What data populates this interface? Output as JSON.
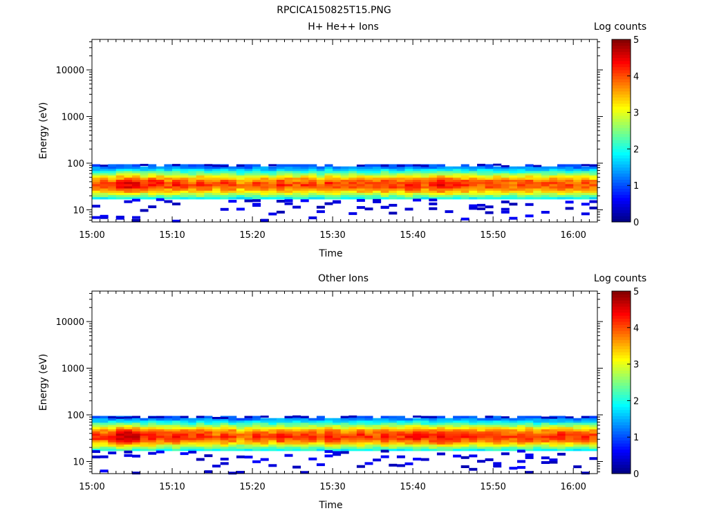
{
  "figure_title": "RPCICA150825T15.PNG",
  "chart_data": [
    {
      "type": "heatmap",
      "title": "H+ He++ Ions",
      "xlabel": "Time",
      "ylabel": "Energy (eV)",
      "y_scale": "log",
      "ylim": [
        5.5,
        45000
      ],
      "xlim": [
        "15:00",
        "16:03"
      ],
      "x_ticks": [
        "15:00",
        "15:10",
        "15:20",
        "15:30",
        "15:40",
        "15:50",
        "16:00"
      ],
      "y_ticks": [
        10,
        100,
        1000,
        10000
      ],
      "y_tick_labels": [
        "10",
        "100",
        "1000",
        "10000"
      ],
      "colorbar": {
        "label": "Log counts",
        "range": [
          0,
          5
        ],
        "ticks": [
          "0",
          "1",
          "2",
          "3",
          "4",
          "5"
        ],
        "colormap": "jet"
      },
      "energy_band": {
        "min_eV": 20,
        "max_eV": 95,
        "peak_eV": 35,
        "peak_log_counts": 4.2
      },
      "time_start_minutes": 0,
      "time_step_minutes": 1,
      "peak_log_counts_by_minute": [
        4.0,
        4.1,
        4.0,
        4.3,
        4.5,
        4.4,
        4.1,
        4.3,
        4.2,
        4.0,
        4.2,
        4.1,
        3.9,
        4.2,
        4.0,
        3.8,
        4.1,
        4.0,
        3.7,
        3.8,
        4.1,
        4.0,
        3.8,
        4.2,
        4.0,
        3.9,
        4.1,
        4.0,
        3.8,
        4.2,
        4.1,
        3.9,
        4.0,
        4.1,
        4.0,
        3.9,
        4.2,
        4.1,
        4.0,
        4.3,
        4.2,
        4.0,
        4.1,
        4.4,
        4.3,
        4.2,
        4.1,
        4.0,
        3.9,
        4.0,
        4.1,
        4.0,
        3.9,
        4.0,
        4.1,
        3.9,
        4.0,
        4.0,
        4.1,
        4.0,
        3.9,
        4.0,
        3.9
      ]
    },
    {
      "type": "heatmap",
      "title": "Other Ions",
      "xlabel": "Time",
      "ylabel": "Energy (eV)",
      "y_scale": "log",
      "ylim": [
        5.5,
        45000
      ],
      "xlim": [
        "15:00",
        "16:03"
      ],
      "x_ticks": [
        "15:00",
        "15:10",
        "15:20",
        "15:30",
        "15:40",
        "15:50",
        "16:00"
      ],
      "y_ticks": [
        10,
        100,
        1000,
        10000
      ],
      "y_tick_labels": [
        "10",
        "100",
        "1000",
        "10000"
      ],
      "colorbar": {
        "label": "Log counts",
        "range": [
          0,
          5
        ],
        "ticks": [
          "0",
          "1",
          "2",
          "3",
          "4",
          "5"
        ],
        "colormap": "jet"
      },
      "energy_band": {
        "min_eV": 20,
        "max_eV": 95,
        "peak_eV": 35,
        "peak_log_counts": 4.3
      },
      "time_start_minutes": 0,
      "time_step_minutes": 1,
      "peak_log_counts_by_minute": [
        4.2,
        4.1,
        4.3,
        4.6,
        4.7,
        4.5,
        4.3,
        4.4,
        4.2,
        4.1,
        4.3,
        4.2,
        4.0,
        4.2,
        4.1,
        3.9,
        4.2,
        4.1,
        3.8,
        3.9,
        4.2,
        4.1,
        3.9,
        4.3,
        4.1,
        4.0,
        4.2,
        4.1,
        3.9,
        4.3,
        4.2,
        4.0,
        4.1,
        4.2,
        4.1,
        4.0,
        4.3,
        4.2,
        4.1,
        4.3,
        4.4,
        4.2,
        4.3,
        4.5,
        4.4,
        4.3,
        4.2,
        4.1,
        4.0,
        4.1,
        4.2,
        4.1,
        4.0,
        4.1,
        4.2,
        4.0,
        4.1,
        4.1,
        4.2,
        4.1,
        4.0,
        4.1,
        4.0
      ]
    }
  ]
}
